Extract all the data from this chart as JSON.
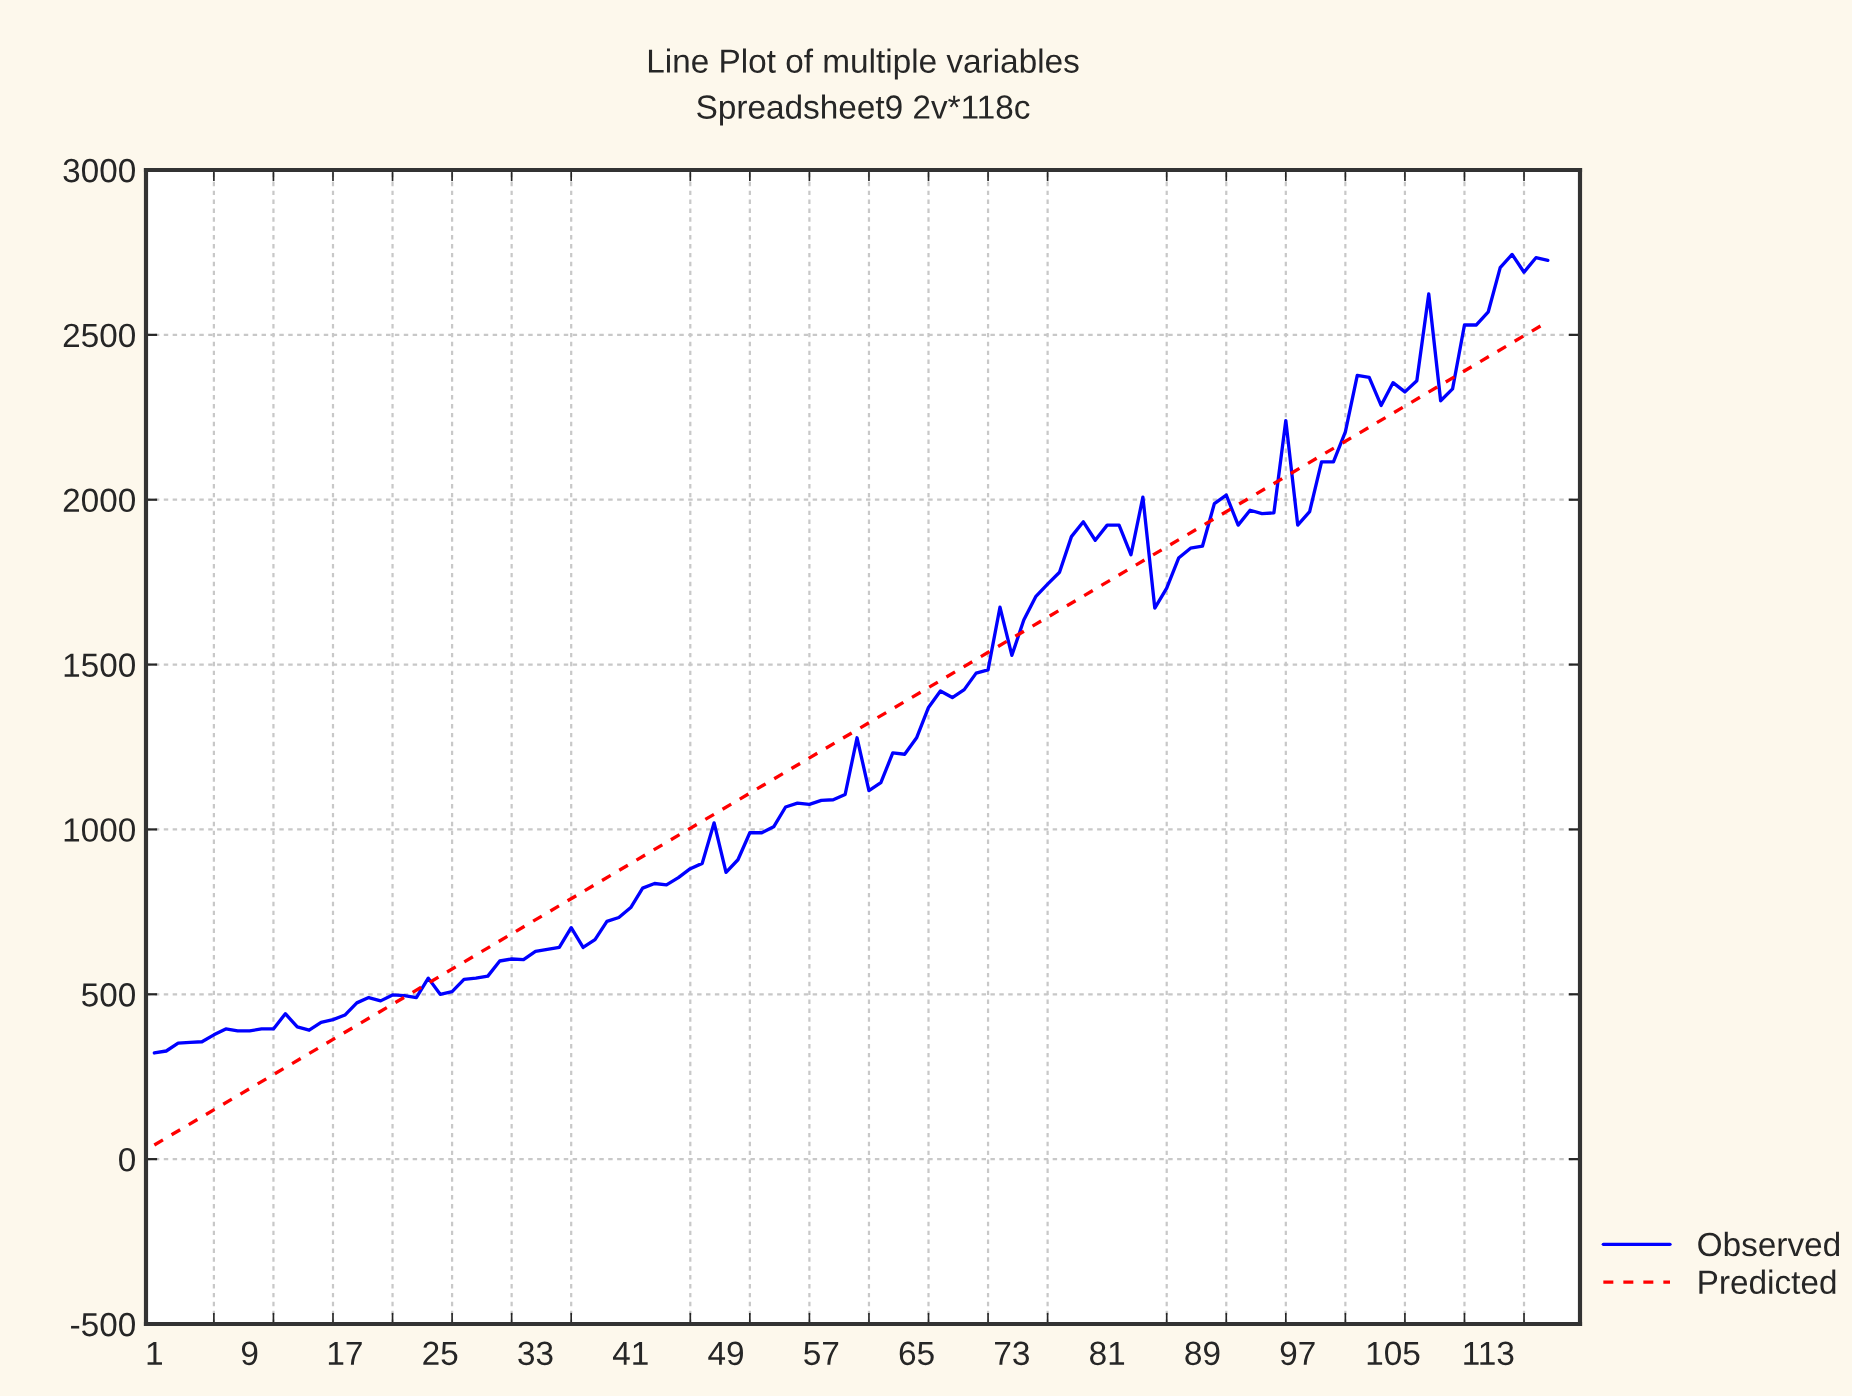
{
  "chart_data": {
    "type": "line",
    "title": "Line Plot of multiple variables",
    "subtitle": "Spreadsheet9 2v*118c",
    "x": [
      1,
      2,
      3,
      4,
      5,
      6,
      7,
      8,
      9,
      10,
      11,
      12,
      13,
      14,
      15,
      16,
      17,
      18,
      19,
      20,
      21,
      22,
      23,
      24,
      25,
      26,
      27,
      28,
      29,
      30,
      31,
      32,
      33,
      34,
      35,
      36,
      37,
      38,
      39,
      40,
      41,
      42,
      43,
      44,
      45,
      46,
      47,
      48,
      49,
      50,
      51,
      52,
      53,
      54,
      55,
      56,
      57,
      58,
      59,
      60,
      61,
      62,
      63,
      64,
      65,
      66,
      67,
      68,
      69,
      70,
      71,
      72,
      73,
      74,
      75,
      76,
      77,
      78,
      79,
      80,
      81,
      82,
      83,
      84,
      85,
      86,
      87,
      88,
      89,
      90,
      91,
      92,
      93,
      94,
      95,
      96,
      97,
      98,
      99,
      100,
      101,
      102,
      103,
      104,
      105,
      106,
      107,
      108,
      109,
      110,
      111,
      112,
      113,
      114,
      115,
      116,
      117,
      118
    ],
    "series": [
      {
        "name": "Observed",
        "color": "#0000ff",
        "line_style": "solid",
        "values": [
          322,
          328,
          352,
          354,
          356,
          377,
          395,
          389,
          389,
          395,
          395,
          441,
          401,
          391,
          415,
          423,
          437,
          474,
          490,
          480,
          498,
          496,
          490,
          549,
          500,
          508,
          545,
          549,
          555,
          601,
          607,
          605,
          630,
          636,
          642,
          702,
          642,
          666,
          721,
          733,
          763,
          822,
          836,
          832,
          854,
          881,
          897,
          1020,
          870,
          908,
          990,
          990,
          1008,
          1068,
          1080,
          1076,
          1088,
          1090,
          1106,
          1278,
          1118,
          1142,
          1232,
          1228,
          1278,
          1370,
          1420,
          1400,
          1424,
          1474,
          1484,
          1674,
          1528,
          1635,
          1706,
          1744,
          1780,
          1888,
          1933,
          1877,
          1923,
          1923,
          1833,
          2008,
          1671,
          1732,
          1823,
          1853,
          1859,
          1988,
          2014,
          1923,
          1968,
          1958,
          1960,
          2240,
          1923,
          1964,
          2115,
          2115,
          2206,
          2377,
          2371,
          2286,
          2355,
          2327,
          2361,
          2624,
          2300,
          2336,
          2530,
          2530,
          2570,
          2704,
          2744,
          2690,
          2734,
          2726
        ]
      },
      {
        "name": "Predicted",
        "color": "#ff0000",
        "line_style": "dashed",
        "x": [
          1,
          118
        ],
        "values": [
          43,
          2540
        ]
      }
    ],
    "xlim": [
      0.3,
      120.7
    ],
    "xticks": [
      1,
      {
        "value": 6,
        "label": null
      },
      9,
      {
        "value": 11,
        "label": null
      },
      {
        "value": 16,
        "label": null
      },
      17,
      {
        "value": 21,
        "label": null
      },
      25,
      {
        "value": 26,
        "label": null
      },
      {
        "value": 31,
        "label": null
      },
      33,
      {
        "value": 36,
        "label": null
      },
      41,
      {
        "value": 46,
        "label": null
      },
      49,
      {
        "value": 51,
        "label": null
      },
      {
        "value": 56,
        "label": null
      },
      57,
      {
        "value": 61,
        "label": null
      },
      65,
      {
        "value": 66,
        "label": null
      },
      {
        "value": 71,
        "label": null
      },
      73,
      {
        "value": 76,
        "label": null
      },
      81,
      {
        "value": 86,
        "label": null
      },
      89,
      {
        "value": 91,
        "label": null
      },
      {
        "value": 96,
        "label": null
      },
      97,
      {
        "value": 101,
        "label": null
      },
      105,
      {
        "value": 106,
        "label": null
      },
      {
        "value": 111,
        "label": null
      },
      113,
      {
        "value": 116,
        "label": null
      }
    ],
    "ylim": [
      -500,
      3000
    ],
    "yticks": [
      -500,
      0,
      500,
      1000,
      1500,
      2000,
      2500,
      3000
    ],
    "grid": true,
    "legend": "bottom right",
    "marker": "none"
  }
}
